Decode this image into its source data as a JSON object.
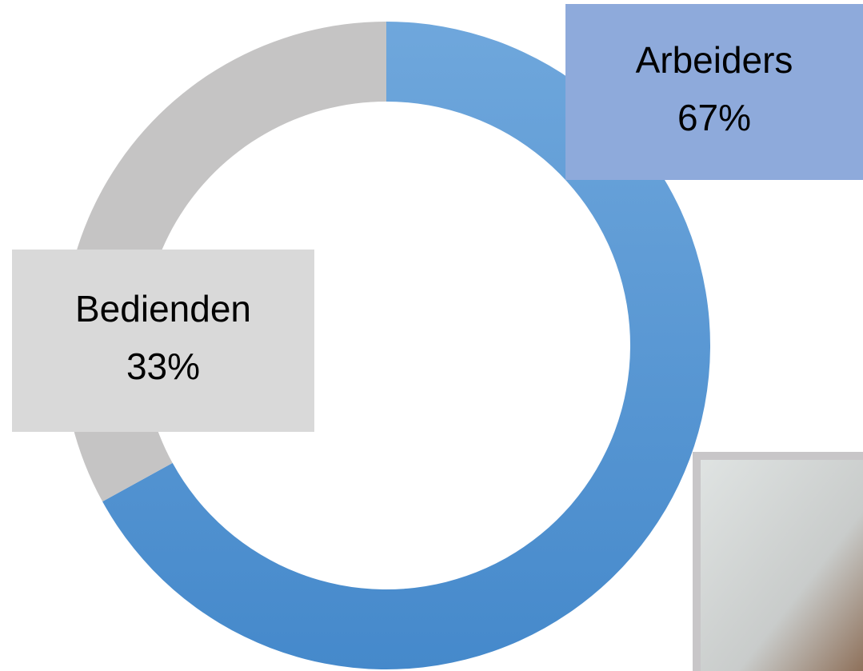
{
  "chart_data": {
    "type": "pie",
    "categories": [
      "Arbeiders",
      "Bedienden"
    ],
    "values": [
      67,
      33
    ],
    "value_labels": [
      "67%",
      "33%"
    ],
    "colors": [
      "#5b9bd5",
      "#c5c4c4"
    ],
    "label_colors": [
      "#8eaadb",
      "#d9d9d9"
    ],
    "donut": true
  }
}
